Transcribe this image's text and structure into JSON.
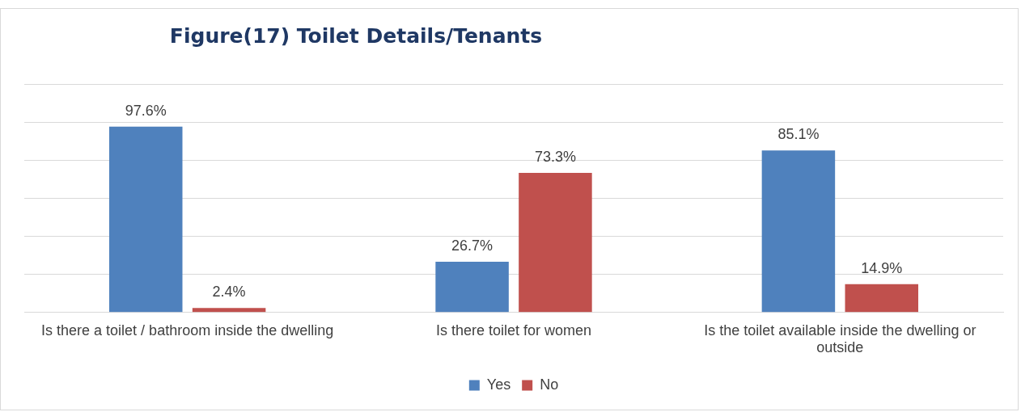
{
  "chart_data": {
    "type": "bar",
    "title": "Figure(17) Toilet Details/Tenants",
    "categories": [
      "Is there a toilet / bathroom inside the dwelling",
      "Is there toilet for women",
      "Is the toilet available inside the dwelling or outside"
    ],
    "series": [
      {
        "name": "Yes",
        "color": "#4f81bd",
        "values": [
          97.6,
          26.7,
          85.1
        ],
        "value_labels": [
          "97.6%",
          "26.7%",
          "85.1%"
        ]
      },
      {
        "name": "No",
        "color": "#c0504d",
        "values": [
          2.4,
          73.3,
          14.9
        ],
        "value_labels": [
          "2.4%",
          "73.3%",
          "14.9%"
        ]
      }
    ],
    "ylim": [
      0,
      120
    ],
    "yticks": [
      0,
      20,
      40,
      60,
      80,
      100,
      120
    ],
    "grid": "y",
    "tick_labels": "x",
    "legend": "bottom"
  }
}
